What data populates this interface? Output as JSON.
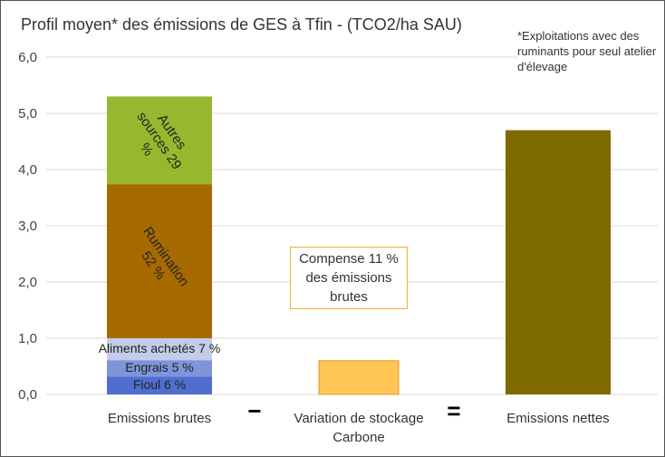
{
  "chart_data": {
    "type": "bar",
    "stacked": true,
    "title": "Profil moyen* des émissions de GES à Tfin - (TCO2/ha SAU)",
    "note": "*Exploitations avec des ruminants pour seul atelier d'élevage",
    "annotation": "Compense 11 % des émissions brutes",
    "operators": [
      "−",
      "="
    ],
    "categories": [
      "Emissions brutes",
      "Variation de stockage Carbone",
      "Emissions nettes"
    ],
    "series": [
      {
        "name": "Fioul 6 %",
        "color": "#4f6fd0",
        "values": [
          0.32,
          null,
          null
        ]
      },
      {
        "name": "Engrais 5 %",
        "color": "#8094dc",
        "values": [
          0.29,
          null,
          null
        ]
      },
      {
        "name": "Aliments achetés 7 %",
        "color": "#c5cbea",
        "values": [
          0.39,
          null,
          null
        ]
      },
      {
        "name": "Rumination 52 %",
        "color": "#a66a00",
        "values": [
          2.74,
          null,
          null
        ]
      },
      {
        "name": "Autres sources 29 %",
        "color": "#97b82e",
        "values": [
          1.56,
          null,
          null
        ]
      },
      {
        "color": "#ffc555",
        "values": [
          null,
          0.6,
          null
        ]
      },
      {
        "color": "#7f6a00",
        "values": [
          null,
          null,
          4.7
        ]
      }
    ],
    "ylim": [
      0,
      6
    ],
    "yticks": [
      {
        "value": 0,
        "label": "0,0"
      },
      {
        "value": 1,
        "label": "1,0"
      },
      {
        "value": 2,
        "label": "2,0"
      },
      {
        "value": 3,
        "label": "3,0"
      },
      {
        "value": 4,
        "label": "4,0"
      },
      {
        "value": 5,
        "label": "5,0"
      },
      {
        "value": 6,
        "label": "6,0"
      }
    ],
    "grid": true
  }
}
